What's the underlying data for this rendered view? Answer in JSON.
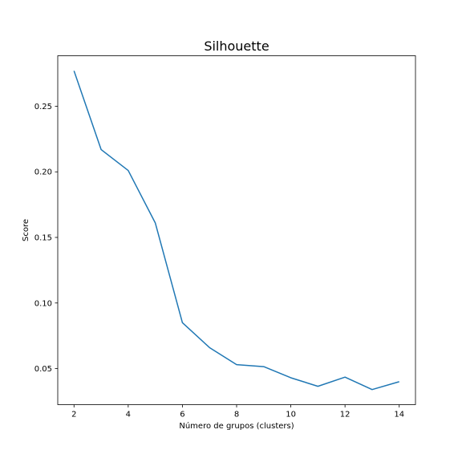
{
  "chart_data": {
    "type": "line",
    "title": "Silhouette",
    "xlabel": "Número de grupos (clusters)",
    "ylabel": "Score",
    "xlim": [
      1.4,
      14.6
    ],
    "ylim": [
      0.0225,
      0.2885
    ],
    "xticks": [
      2,
      4,
      6,
      8,
      10,
      12,
      14
    ],
    "xtick_labels": [
      "2",
      "4",
      "6",
      "8",
      "10",
      "12",
      "14"
    ],
    "yticks": [
      0.05,
      0.1,
      0.15,
      0.2,
      0.25
    ],
    "ytick_labels": [
      "0.05",
      "0.10",
      "0.15",
      "0.20",
      "0.25"
    ],
    "grid": false,
    "line_color": "#1f77b4",
    "series": [
      {
        "x": [
          2,
          3,
          4,
          5,
          6,
          7,
          8,
          9,
          10,
          11,
          12,
          13,
          14
        ],
        "values": [
          0.277,
          0.217,
          0.201,
          0.161,
          0.085,
          0.066,
          0.053,
          0.0515,
          0.043,
          0.0365,
          0.0435,
          0.034,
          0.04
        ]
      }
    ]
  }
}
